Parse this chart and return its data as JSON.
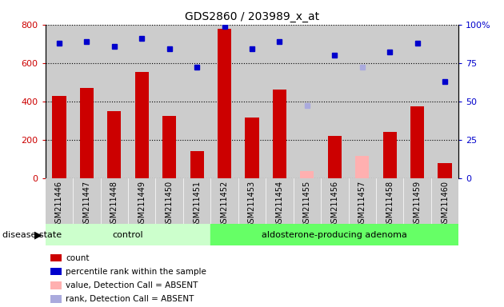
{
  "title": "GDS2860 / 203989_x_at",
  "samples": [
    "GSM211446",
    "GSM211447",
    "GSM211448",
    "GSM211449",
    "GSM211450",
    "GSM211451",
    "GSM211452",
    "GSM211453",
    "GSM211454",
    "GSM211455",
    "GSM211456",
    "GSM211457",
    "GSM211458",
    "GSM211459",
    "GSM211460"
  ],
  "counts": [
    430,
    470,
    350,
    555,
    325,
    140,
    780,
    315,
    460,
    null,
    220,
    null,
    240,
    375,
    80
  ],
  "counts_absent": [
    null,
    null,
    null,
    null,
    null,
    null,
    null,
    null,
    null,
    35,
    null,
    115,
    null,
    null,
    null
  ],
  "ranks": [
    88,
    89,
    86,
    91,
    84,
    72,
    99,
    84,
    89,
    null,
    80,
    null,
    82,
    88,
    63
  ],
  "ranks_absent": [
    null,
    null,
    null,
    null,
    null,
    null,
    null,
    null,
    null,
    47,
    null,
    72,
    null,
    null,
    null
  ],
  "groups": [
    "control",
    "control",
    "control",
    "control",
    "control",
    "control",
    "adenoma",
    "adenoma",
    "adenoma",
    "adenoma",
    "adenoma",
    "adenoma",
    "adenoma",
    "adenoma",
    "adenoma"
  ],
  "control_label": "control",
  "adenoma_label": "aldosterone-producing adenoma",
  "disease_state_label": "disease state",
  "ylim_left": [
    0,
    800
  ],
  "ylim_right": [
    0,
    100
  ],
  "yticks_left": [
    0,
    200,
    400,
    600,
    800
  ],
  "yticks_right": [
    0,
    25,
    50,
    75,
    100
  ],
  "bar_color": "#cc0000",
  "bar_absent_color": "#ffb0b0",
  "rank_color": "#0000cc",
  "rank_absent_color": "#aaaadd",
  "control_bg": "#ccffcc",
  "adenoma_bg": "#66ff66",
  "tick_label_bg": "#cccccc",
  "legend_items": [
    {
      "label": "count",
      "color": "#cc0000"
    },
    {
      "label": "percentile rank within the sample",
      "color": "#0000cc"
    },
    {
      "label": "value, Detection Call = ABSENT",
      "color": "#ffb0b0"
    },
    {
      "label": "rank, Detection Call = ABSENT",
      "color": "#aaaadd"
    }
  ]
}
